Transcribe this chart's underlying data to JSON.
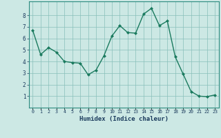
{
  "x": [
    0,
    1,
    2,
    3,
    4,
    5,
    6,
    7,
    8,
    9,
    10,
    11,
    12,
    13,
    14,
    15,
    16,
    17,
    18,
    19,
    20,
    21,
    22,
    23
  ],
  "y": [
    6.7,
    4.6,
    5.2,
    4.8,
    4.0,
    3.9,
    3.85,
    2.85,
    3.25,
    4.5,
    6.2,
    7.1,
    6.5,
    6.45,
    8.1,
    8.6,
    7.1,
    7.5,
    4.4,
    2.9,
    1.4,
    1.0,
    0.95,
    1.1
  ],
  "xlabel": "Humidex (Indice chaleur)",
  "ylim": [
    0,
    9.2
  ],
  "xlim": [
    -0.5,
    23.5
  ],
  "line_color": "#1a7a5e",
  "marker_color": "#1a7a5e",
  "bg_color": "#cce8e4",
  "grid_color": "#88bfba",
  "tick_label_color": "#1a3a5c",
  "xlabel_color": "#1a3a5c",
  "yticks": [
    1,
    2,
    3,
    4,
    5,
    6,
    7,
    8
  ],
  "xtick_labels": [
    "0",
    "1",
    "2",
    "3",
    "4",
    "5",
    "6",
    "7",
    "8",
    "9",
    "10",
    "11",
    "12",
    "13",
    "14",
    "15",
    "16",
    "17",
    "18",
    "19",
    "20",
    "21",
    "22",
    "23"
  ]
}
